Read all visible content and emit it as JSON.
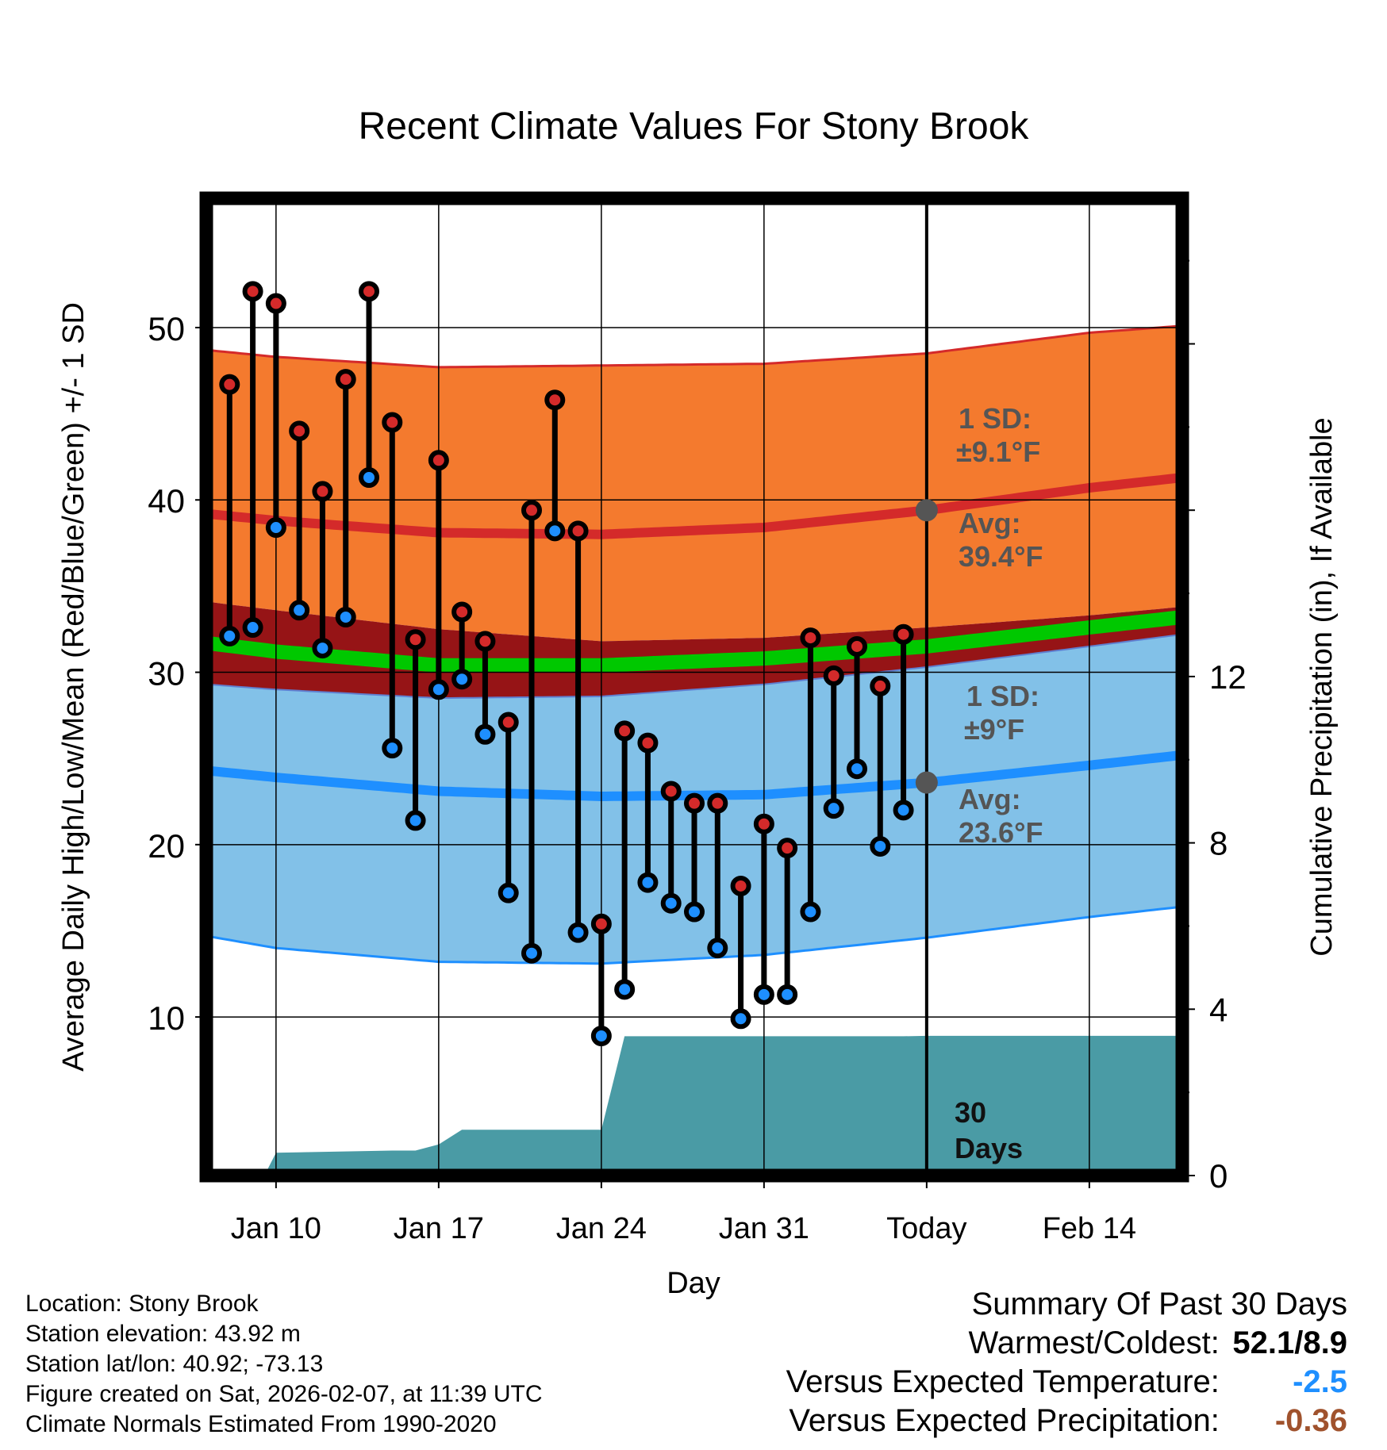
{
  "chart_data": {
    "type": "line",
    "title": "Recent Climate Values For Stony Brook",
    "xlabel": "Day",
    "ylabel": "Average Daily High/Low/Mean (Red/Blue/Green) +/- 1 SD",
    "y2label": "Cumulative Precipitation (in), If Available",
    "xlim": [
      7,
      49
    ],
    "ylim": [
      0.8,
      57.5
    ],
    "y2lim": [
      0,
      23.5
    ],
    "today_index": 38,
    "x_ticks": [
      {
        "day": 10,
        "label": "Jan 10"
      },
      {
        "day": 17,
        "label": "Jan 17"
      },
      {
        "day": 24,
        "label": "Jan 24"
      },
      {
        "day": 31,
        "label": "Jan 31"
      },
      {
        "day": 38,
        "label": "Today"
      },
      {
        "day": 45,
        "label": "Feb 14"
      }
    ],
    "y_ticks": [
      10,
      20,
      30,
      40,
      50
    ],
    "y2_ticks": [
      0,
      4,
      8,
      12
    ],
    "normals": {
      "days": [
        7,
        10,
        17,
        24,
        31,
        38,
        45,
        49
      ],
      "avg_high": [
        39.2,
        38.8,
        38.1,
        38.0,
        38.4,
        39.4,
        40.7,
        41.3
      ],
      "high_plus_sd": [
        48.7,
        48.3,
        47.7,
        47.8,
        47.9,
        48.5,
        49.7,
        50.1
      ],
      "high_minus_sd": [
        34.1,
        33.6,
        32.5,
        31.8,
        32.0,
        32.6,
        33.3,
        33.8
      ],
      "avg_mean": [
        31.7,
        31.2,
        30.4,
        30.4,
        30.8,
        31.5,
        32.6,
        33.2
      ],
      "avg_low": [
        24.3,
        23.9,
        23.1,
        22.8,
        22.9,
        23.6,
        24.6,
        25.2
      ],
      "low_plus_sd": [
        29.3,
        29.0,
        28.5,
        28.6,
        29.3,
        30.3,
        31.5,
        32.2
      ],
      "low_minus_sd": [
        14.7,
        14.0,
        13.2,
        13.1,
        13.6,
        14.6,
        15.8,
        16.4
      ]
    },
    "series": [
      {
        "name": "Daily High",
        "color": "#d42a2a",
        "days": [
          8,
          9,
          10,
          11,
          12,
          13,
          14,
          15,
          16,
          17,
          18,
          19,
          20,
          21,
          22,
          23,
          24,
          25,
          26,
          27,
          28,
          29,
          30,
          31,
          32,
          33,
          34,
          35,
          36,
          37
        ],
        "values": [
          46.7,
          52.1,
          51.4,
          44.0,
          40.5,
          47.0,
          52.1,
          44.5,
          31.9,
          42.3,
          33.5,
          31.8,
          27.1,
          39.4,
          45.8,
          38.2,
          15.4,
          26.6,
          25.9,
          23.1,
          22.4,
          22.4,
          17.6,
          21.2,
          19.8,
          32.0,
          29.8,
          31.5,
          29.2,
          32.2
        ]
      },
      {
        "name": "Daily Low",
        "color": "#1e8fff",
        "days": [
          8,
          9,
          10,
          11,
          12,
          13,
          14,
          15,
          16,
          17,
          18,
          19,
          20,
          21,
          22,
          23,
          24,
          25,
          26,
          27,
          28,
          29,
          30,
          31,
          32,
          33,
          34,
          35,
          36,
          37
        ],
        "values": [
          32.1,
          32.6,
          38.4,
          33.6,
          31.4,
          33.2,
          41.3,
          25.6,
          21.4,
          29.0,
          29.6,
          26.4,
          17.2,
          13.7,
          38.2,
          14.9,
          8.9,
          11.6,
          17.8,
          16.6,
          16.1,
          14.0,
          9.9,
          11.3,
          11.3,
          16.1,
          22.1,
          24.4,
          19.9,
          22.0
        ]
      },
      {
        "name": "Cumulative Precipitation",
        "color": "#4a9ba5",
        "days": [
          8,
          9.5,
          10,
          15,
          16,
          17,
          18,
          24,
          25,
          37,
          38,
          49
        ],
        "values": [
          0,
          0,
          0.55,
          0.6,
          0.6,
          0.75,
          1.1,
          1.1,
          3.35,
          3.35,
          3.36,
          3.36
        ]
      }
    ],
    "annotations": {
      "high_sd_label": "1 SD:",
      "high_sd_value": "±9.1°F",
      "high_avg_label": "Avg:",
      "high_avg_value": "39.4°F",
      "low_sd_label": "1 SD:",
      "low_sd_value": "±9°F",
      "low_avg_label": "Avg:",
      "low_avg_value": "23.6°F",
      "days_count": "30",
      "days_word": "Days"
    }
  },
  "station_info": {
    "location": "Location: Stony Brook",
    "elevation": "Station elevation: 43.92 m",
    "latlon": "Station lat/lon: 40.92; -73.13",
    "created": "Figure created on Sat, 2026-02-07, at 11:39 UTC",
    "normals": "Climate Normals Estimated From 1990-2020"
  },
  "summary": {
    "title": "Summary Of Past 30 Days",
    "warmest_coldest_label": "Warmest/Coldest:",
    "warmest_coldest_value": "52.1/8.9",
    "temp_label": "Versus Expected Temperature:",
    "temp_value": "-2.5",
    "temp_color": "#1e8fff",
    "precip_label": "Versus Expected Precipitation:",
    "precip_value": "-0.36",
    "precip_color": "#a0522d"
  }
}
